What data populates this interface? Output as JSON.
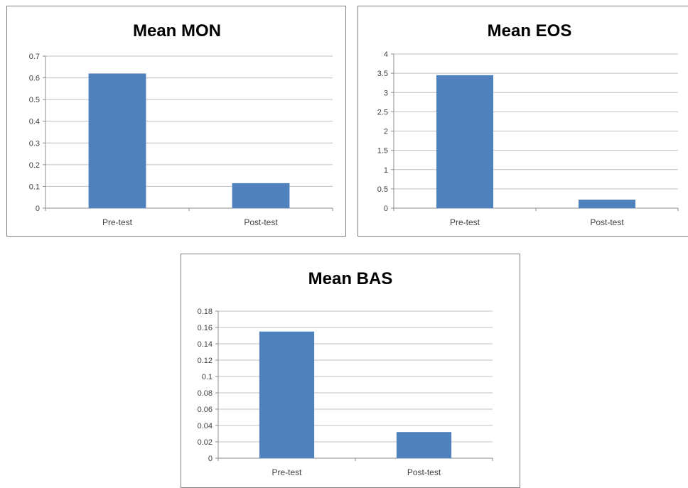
{
  "colors": {
    "bar": "#4f81bd",
    "gridline": "#c0c0c0",
    "axis": "#8e8e8e",
    "text": "#404040"
  },
  "chart_data": [
    {
      "type": "bar",
      "title": "Mean MON",
      "categories": [
        "Pre-test",
        "Post-test"
      ],
      "values": [
        0.62,
        0.115
      ],
      "ylim": [
        0,
        0.7
      ],
      "yticks": [
        "0",
        "0.1",
        "0.2",
        "0.3",
        "0.4",
        "0.5",
        "0.6",
        "0.7"
      ],
      "xlabel": "",
      "ylabel": "",
      "grid": true,
      "legend": "none"
    },
    {
      "type": "bar",
      "title": "Mean EOS",
      "categories": [
        "Pre-test",
        "Post-test"
      ],
      "values": [
        3.45,
        0.22
      ],
      "ylim": [
        0,
        4
      ],
      "yticks": [
        "0",
        "0.5",
        "1",
        "1.5",
        "2",
        "2.5",
        "3",
        "3.5",
        "4"
      ],
      "xlabel": "",
      "ylabel": "",
      "grid": true,
      "legend": "none"
    },
    {
      "type": "bar",
      "title": "Mean BAS",
      "categories": [
        "Pre-test",
        "Post-test"
      ],
      "values": [
        0.155,
        0.032
      ],
      "ylim": [
        0,
        0.18
      ],
      "yticks": [
        "0",
        "0.02",
        "0.04",
        "0.06",
        "0.08",
        "0.1",
        "0.12",
        "0.14",
        "0.16",
        "0.18"
      ],
      "xlabel": "",
      "ylabel": "",
      "grid": true,
      "legend": "none"
    }
  ]
}
